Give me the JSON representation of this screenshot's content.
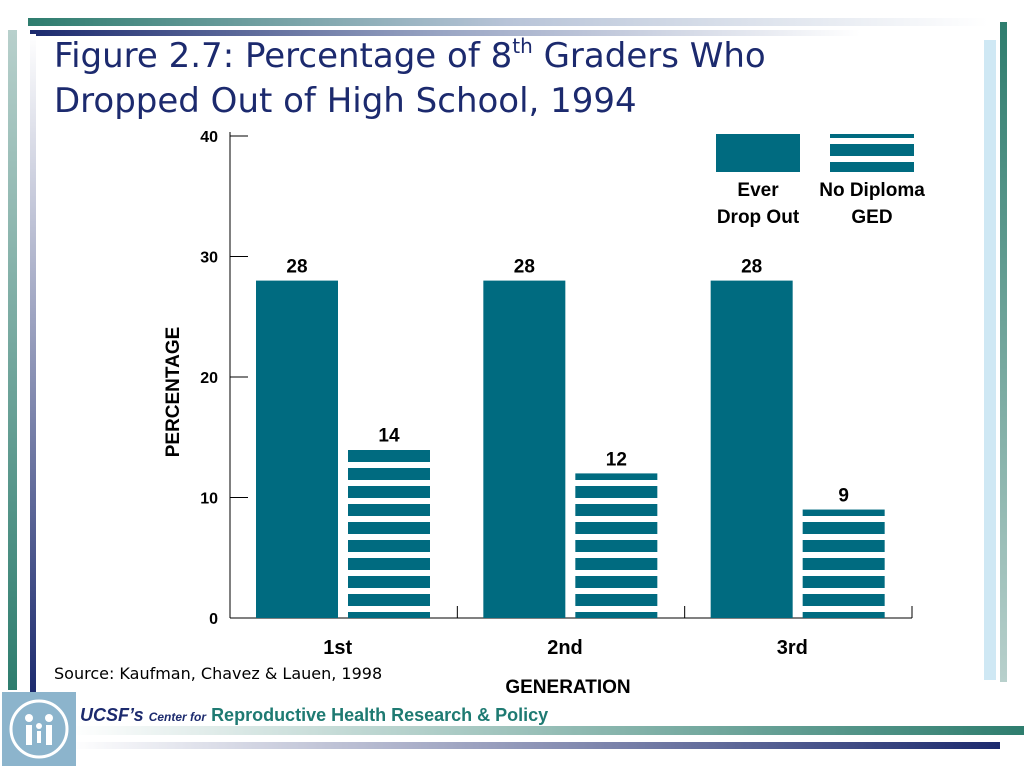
{
  "title": {
    "line1_prefix": "Figure 2.7:  Percentage of 8",
    "line1_sup": "th",
    "line1_suffix": " Graders Who",
    "line2": "Dropped Out of High School, 1994"
  },
  "source": "Source: Kaufman, Chavez & Lauen, 1998",
  "footer": {
    "org": "UCSF’s",
    "center_for": "Center for",
    "name": "Reproductive Health Research & Policy"
  },
  "colors": {
    "primary": "#006b80",
    "title": "#1c2a6e",
    "accent_green": "#1e7a72",
    "accent_light": "#cfe8f4"
  },
  "chart_data": {
    "type": "bar",
    "title": "",
    "xlabel": "GENERATION",
    "ylabel": "PERCENTAGE",
    "categories": [
      "1st",
      "2nd",
      "3rd"
    ],
    "ylim": [
      0,
      40
    ],
    "yticks": [
      0,
      10,
      20,
      30,
      40
    ],
    "grid": false,
    "legend_position": "top-right",
    "series": [
      {
        "name": "Ever Drop Out",
        "values": [
          28,
          28,
          28
        ],
        "fill": "solid",
        "color": "#006b80"
      },
      {
        "name": "No Diploma GED",
        "values": [
          14,
          12,
          9
        ],
        "fill": "horizontal-stripes",
        "color": "#006b80"
      }
    ],
    "legend": [
      {
        "line1": "Ever",
        "line2": "Drop Out"
      },
      {
        "line1": "No Diploma",
        "line2": "GED"
      }
    ]
  }
}
